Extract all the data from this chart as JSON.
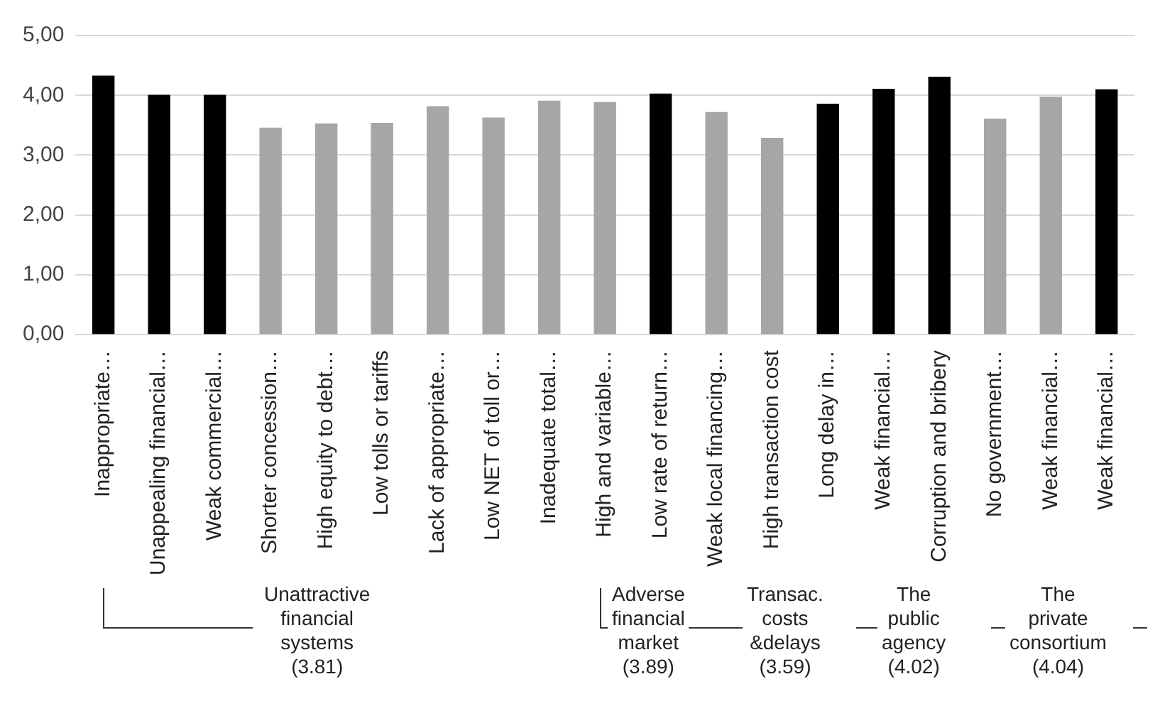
{
  "chart_data": {
    "type": "bar",
    "categories": [
      "Inappropriate…",
      "Unappealing financial…",
      "Weak commercial…",
      "Shorter concession…",
      "High equity to debt…",
      "Low tolls or tariffs",
      "Lack of appropriate…",
      "Low NET of toll or…",
      "Inadequate total…",
      "High and variable…",
      "Low rate of return…",
      "Weak local financing…",
      "High transaction cost",
      "Long delay in…",
      "Weak financial…",
      "Corruption and bribery",
      "No government…",
      "Weak financial…",
      "Weak financial…"
    ],
    "values": [
      4.33,
      4.01,
      4.01,
      3.46,
      3.53,
      3.54,
      3.82,
      3.63,
      3.91,
      3.89,
      4.03,
      3.72,
      3.29,
      3.86,
      4.11,
      4.31,
      3.61,
      3.98,
      4.1
    ],
    "colors": [
      "#000000",
      "#000000",
      "#000000",
      "#a6a6a6",
      "#a6a6a6",
      "#a6a6a6",
      "#a6a6a6",
      "#a6a6a6",
      "#a6a6a6",
      "#a6a6a6",
      "#000000",
      "#a6a6a6",
      "#a6a6a6",
      "#000000",
      "#000000",
      "#000000",
      "#a6a6a6",
      "#a6a6a6",
      "#000000"
    ],
    "ylim": [
      0,
      5
    ],
    "yticks": [
      {
        "value": 0,
        "label": "0,00"
      },
      {
        "value": 1,
        "label": "1,00"
      },
      {
        "value": 2,
        "label": "2,00"
      },
      {
        "value": 3,
        "label": "3,00"
      },
      {
        "value": 4,
        "label": "4,00"
      },
      {
        "value": 5,
        "label": "5,00"
      }
    ],
    "grid": "y",
    "annotations": [
      "Unattractive\nfinancial\nsystems\n(3.81)",
      "Adverse\nfinancial\nmarket\n(3.89)",
      "Transac.\ncosts\n&delays\n(3.59)",
      "The\npublic\nagency\n(4.02)",
      "The\nprivate\nconsortium\n(4.04)"
    ]
  }
}
